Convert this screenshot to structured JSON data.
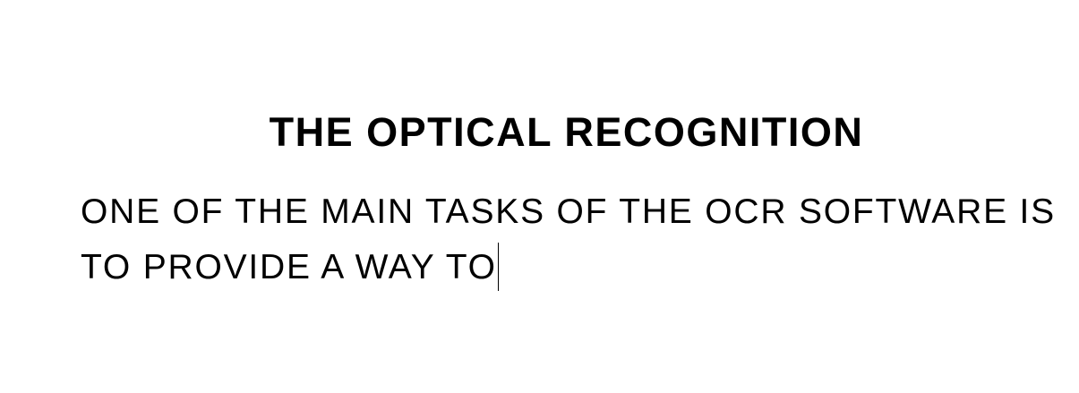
{
  "document": {
    "title": "THE OPTICAL RECOGNITION",
    "body_lines": [
      "ONE OF THE MAIN TASKS OF THE OCR SOFTWARE IS",
      "TO PROVIDE A WAY TO"
    ]
  }
}
